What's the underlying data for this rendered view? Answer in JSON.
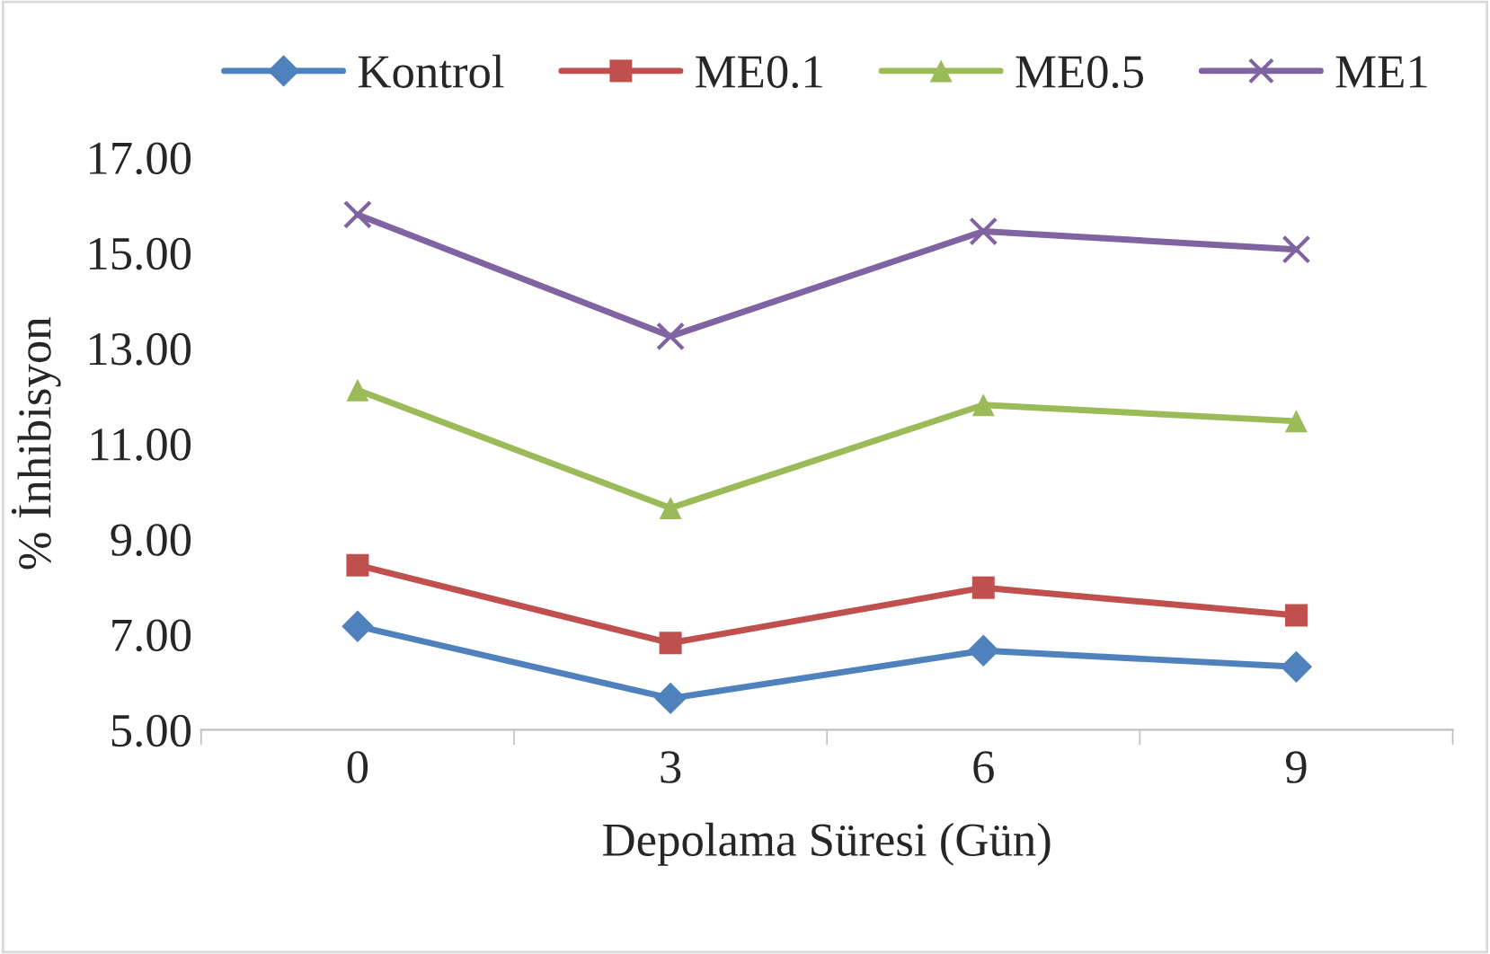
{
  "chart_data": {
    "type": "line",
    "xlabel": "Depolama Süresi (Gün)",
    "ylabel": "% İnhibisyon",
    "categories": [
      "0",
      "3",
      "6",
      "9"
    ],
    "series": [
      {
        "name": "Kontrol",
        "color": "#4f81bd",
        "marker": "diamond",
        "values": [
          7.17,
          5.66,
          6.66,
          6.32
        ]
      },
      {
        "name": "ME0.1",
        "color": "#c0504d",
        "marker": "square",
        "values": [
          8.45,
          6.82,
          7.98,
          7.4
        ]
      },
      {
        "name": "ME0.5",
        "color": "#9bbb59",
        "marker": "triangle",
        "values": [
          12.12,
          9.65,
          11.81,
          11.47
        ]
      },
      {
        "name": "ME1",
        "color": "#8064a2",
        "marker": "cross",
        "values": [
          15.8,
          13.25,
          15.45,
          15.07
        ]
      }
    ],
    "ylim": [
      5,
      17
    ],
    "yticks": [
      {
        "value": 5,
        "label": "5.00"
      },
      {
        "value": 7,
        "label": "7.00"
      },
      {
        "value": 9,
        "label": "9.00"
      },
      {
        "value": 11,
        "label": "11.00"
      },
      {
        "value": 13,
        "label": "13.00"
      },
      {
        "value": 15,
        "label": "15.00"
      },
      {
        "value": 17,
        "label": "17.00"
      }
    ],
    "grid": false,
    "legend": "top",
    "line_style": "solid"
  }
}
